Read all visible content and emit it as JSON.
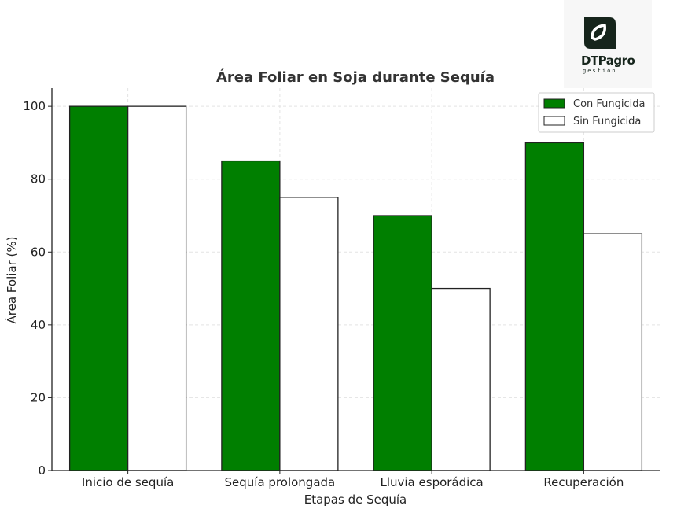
{
  "logo": {
    "name": "DTPagro",
    "tagline": "gestión"
  },
  "chart_data": {
    "type": "bar",
    "title": "Área Foliar en Soja durante Sequía",
    "xlabel": "Etapas de Sequía",
    "ylabel": "Área Foliar (%)",
    "categories": [
      "Inicio de sequía",
      "Sequía prolongada",
      "Lluvia esporádica",
      "Recuperación"
    ],
    "series": [
      {
        "name": "Con Fungicida",
        "values": [
          100,
          85,
          70,
          90
        ],
        "color": "#007f00"
      },
      {
        "name": "Sin Fungicida",
        "values": [
          100,
          75,
          50,
          65
        ],
        "color": "#ffffff"
      }
    ],
    "ylim": [
      0,
      105
    ],
    "yticks": [
      0,
      20,
      40,
      60,
      80,
      100
    ],
    "grid": true,
    "legend": "top-right"
  }
}
